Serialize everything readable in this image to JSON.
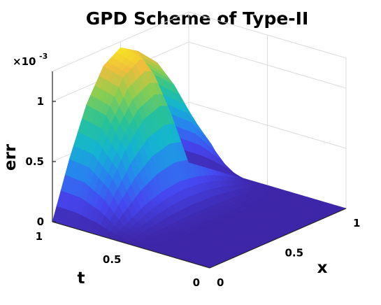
{
  "chart_data": {
    "type": "surface",
    "title": "GPD Scheme of Type-II",
    "xlabel": "x",
    "ylabel": "t",
    "zlabel": "err",
    "xlim": [
      0,
      1
    ],
    "ylim": [
      0,
      1
    ],
    "zlim": [
      0,
      0.00125
    ],
    "x_ticks": [
      "0",
      "0.5",
      "1"
    ],
    "y_ticks": [
      "0",
      "0.5",
      "1"
    ],
    "z_ticks": [
      "0",
      "0.5",
      "1"
    ],
    "z_multiplier": "×10",
    "z_multiplier_exponent": "-3",
    "grid": true,
    "colormap": "parula",
    "surface": {
      "x": [
        0,
        0.125,
        0.25,
        0.375,
        0.5,
        0.625,
        0.75,
        0.875,
        1
      ],
      "t": [
        0,
        0.125,
        0.25,
        0.375,
        0.5,
        0.625,
        0.75,
        0.875,
        1
      ],
      "err_rows": [
        [
          0,
          0,
          0,
          0,
          0,
          0,
          0,
          0,
          0
        ],
        [
          0,
          0,
          0,
          0,
          0,
          0,
          0,
          0,
          0
        ],
        [
          0,
          0,
          0,
          0,
          0,
          0,
          0,
          0,
          0
        ],
        [
          0,
          0,
          0,
          0,
          0,
          0,
          0,
          0,
          0
        ],
        [
          0,
          1e-05,
          2e-05,
          3e-05,
          3e-05,
          3e-05,
          2e-05,
          1e-05,
          0
        ],
        [
          0,
          8e-05,
          0.00016,
          0.00021,
          0.00023,
          0.00021,
          0.00016,
          8e-05,
          0
        ],
        [
          0,
          0.00031,
          0.00057,
          0.00075,
          0.00081,
          0.00075,
          0.00057,
          0.00031,
          0
        ],
        [
          0,
          0.00044,
          0.00081,
          0.00106,
          0.00115,
          0.00106,
          0.00081,
          0.00044,
          0
        ],
        [
          0,
          0.00046,
          0.00085,
          0.00111,
          0.0012,
          0.00111,
          0.00085,
          0.00046,
          0
        ]
      ]
    }
  }
}
